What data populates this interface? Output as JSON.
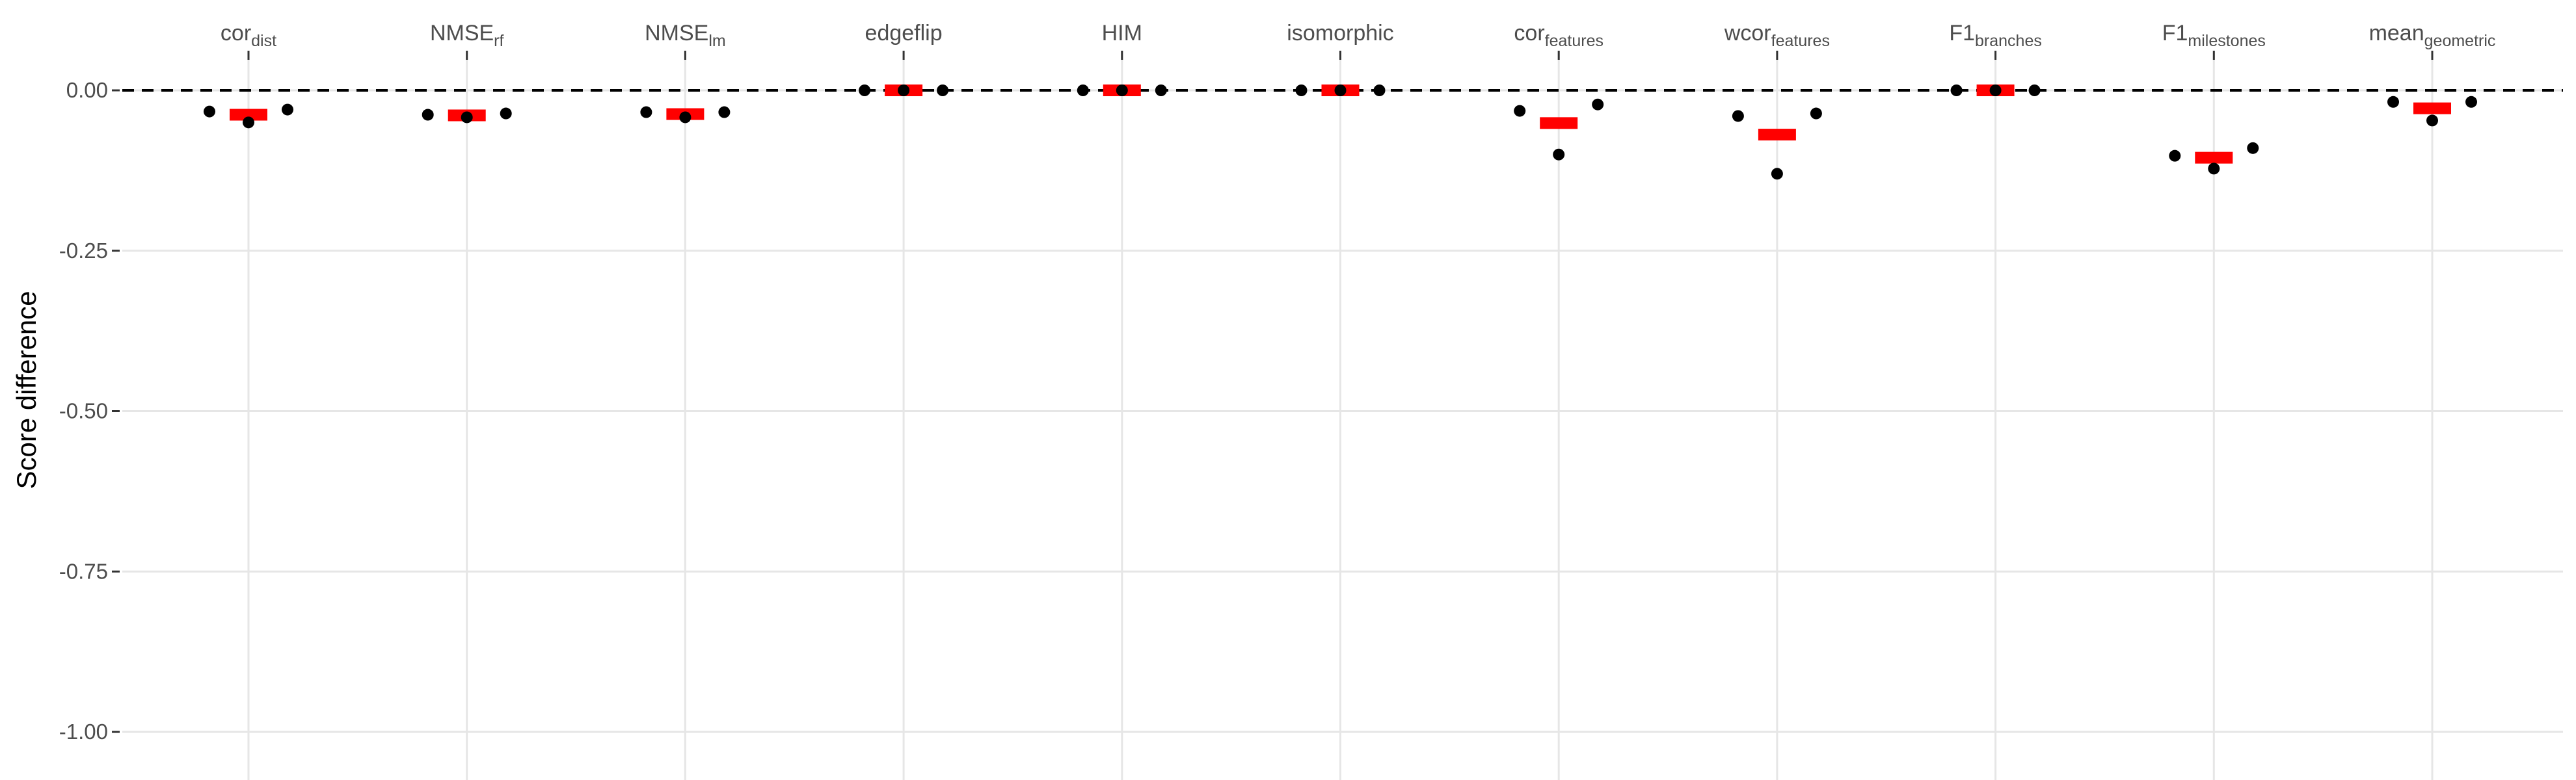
{
  "chart_data": {
    "type": "scatter",
    "title": "",
    "xlabel": "",
    "ylabel": "Score difference",
    "ylim": [
      -1.05,
      0.075
    ],
    "yticks": [
      0.0,
      -0.25,
      -0.5,
      -0.75,
      -1.0
    ],
    "ytick_labels": [
      "0.00",
      "-0.25",
      "-0.50",
      "-0.75",
      "-1.00"
    ],
    "reference_line": {
      "y": 0,
      "style": "dashed",
      "color": "#000000"
    },
    "grid": true,
    "legend": "none",
    "colors": {
      "points": "#000000",
      "mean_bar": "#ff0000",
      "grid": "#e6e6e6"
    },
    "categories": [
      {
        "base": "cor",
        "sub": "dist"
      },
      {
        "base": "NMSE",
        "sub": "rf"
      },
      {
        "base": "NMSE",
        "sub": "lm"
      },
      {
        "base": "edgeflip",
        "sub": ""
      },
      {
        "base": "HIM",
        "sub": ""
      },
      {
        "base": "isomorphic",
        "sub": ""
      },
      {
        "base": "cor",
        "sub": "features"
      },
      {
        "base": "wcor",
        "sub": "features"
      },
      {
        "base": "F1",
        "sub": "branches"
      },
      {
        "base": "F1",
        "sub": "milestones"
      },
      {
        "base": "mean",
        "sub": "geometric"
      }
    ],
    "series": [
      {
        "values": [
          -0.033,
          -0.038,
          -0.034,
          0.0,
          0.0,
          0.0,
          -0.032,
          -0.04,
          0.0,
          -0.102,
          -0.018
        ]
      },
      {
        "values": [
          -0.05,
          -0.042,
          -0.042,
          0.0,
          0.0,
          0.0,
          -0.1,
          -0.13,
          0.0,
          -0.122,
          -0.047
        ]
      },
      {
        "values": [
          -0.03,
          -0.036,
          -0.034,
          0.0,
          0.0,
          0.0,
          -0.022,
          -0.036,
          0.0,
          -0.09,
          -0.018
        ]
      }
    ],
    "means": [
      -0.038,
      -0.039,
      -0.037,
      0.0,
      0.0,
      0.0,
      -0.051,
      -0.069,
      0.0,
      -0.105,
      -0.028
    ]
  }
}
